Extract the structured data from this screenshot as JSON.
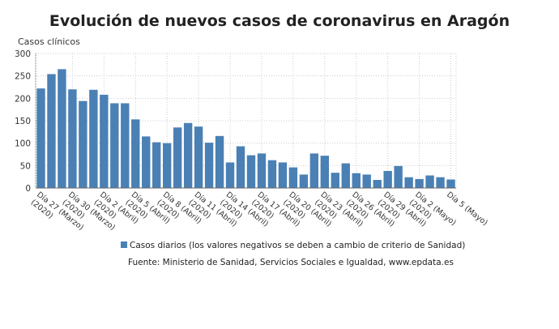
{
  "chart_data": {
    "type": "bar",
    "title": "Evolución de nuevos casos de coronavirus en Aragón",
    "ylabel": "Casos clínicos",
    "xlabel": "",
    "ylim": [
      0,
      300
    ],
    "yticks": [
      0,
      50,
      100,
      150,
      200,
      250,
      300
    ],
    "grid": true,
    "legend_position": "bottom",
    "color": "#4a80b4",
    "series": [
      {
        "name": "Casos diarios (los valores negativos se deben a cambio de criterio de Sanidad)",
        "values": [
          222,
          254,
          265,
          220,
          194,
          219,
          208,
          189,
          189,
          153,
          115,
          102,
          100,
          135,
          145,
          137,
          101,
          116,
          57,
          93,
          73,
          77,
          62,
          57,
          46,
          30,
          77,
          72,
          34,
          55,
          33,
          30,
          18,
          38,
          49,
          24,
          20,
          28,
          24,
          19
        ]
      }
    ],
    "xtick_labels": [
      [
        "Día 27 (Marzo)",
        "(2020)"
      ],
      [
        "Día 30 (Marzo)",
        "(2020)"
      ],
      [
        "Día 2 (Abril)",
        "(2020)"
      ],
      [
        "Día 5 (Abril)",
        "(2020)"
      ],
      [
        "Día 8 (Abril)",
        "(2020)"
      ],
      [
        "Día 11 (Abril)",
        "(2020)"
      ],
      [
        "Día 14 (Abril)",
        "(2020)"
      ],
      [
        "Día 17 (Abril)",
        "(2020)"
      ],
      [
        "Día 20 (Abril)",
        "(2020)"
      ],
      [
        "Día 23 (Abril)",
        "(2020)"
      ],
      [
        "Día 26 (Abril)",
        "(2020)"
      ],
      [
        "Día 29 (Abril)",
        "(2020)"
      ],
      [
        "Día 2 (Mayo)",
        "(2020)"
      ],
      [
        "Día 5 (Mayo)",
        ""
      ]
    ],
    "source": "Fuente: Ministerio de Sanidad, Servicios Sociales e Igualdad, www.epdata.es"
  }
}
